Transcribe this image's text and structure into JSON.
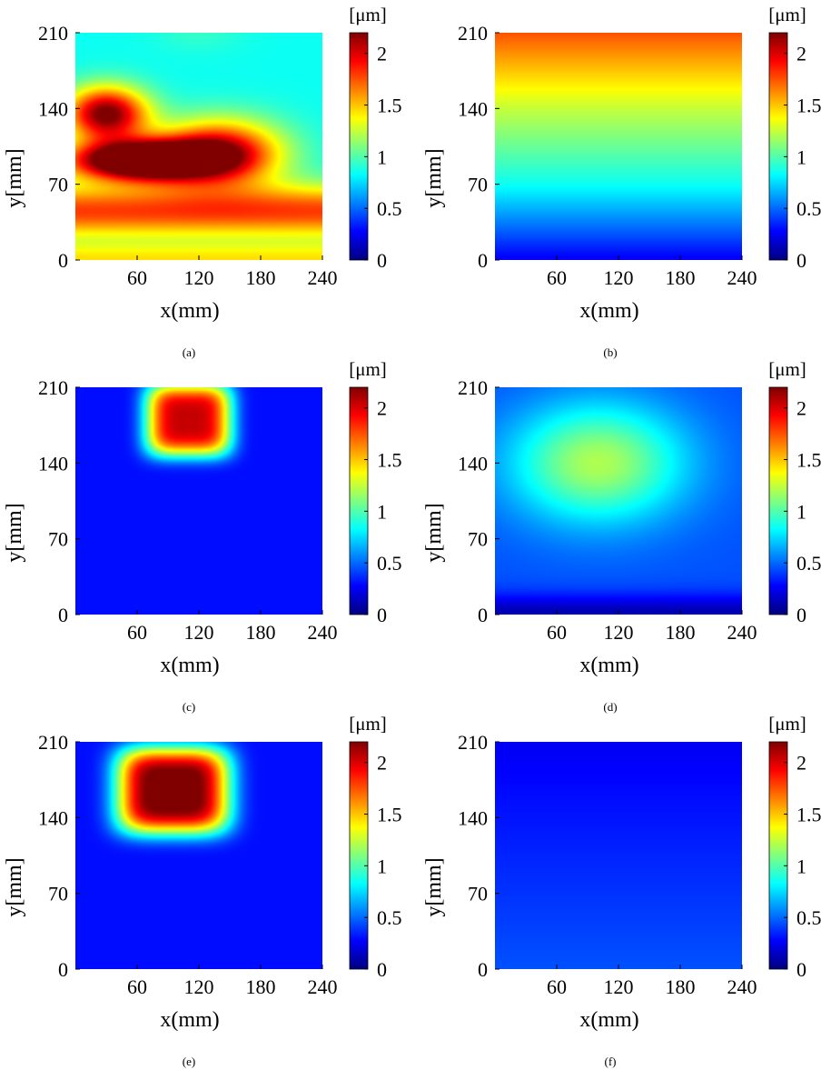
{
  "chart_data": [
    {
      "type": "heatmap",
      "caption": "(a)",
      "xlabel": "x(mm)",
      "ylabel": "y[mm]",
      "xlim": [
        0,
        240
      ],
      "ylim": [
        0,
        210
      ],
      "x_ticks": [
        "60",
        "120",
        "180",
        "240"
      ],
      "y_ticks": [
        "0",
        "70",
        "140",
        "210"
      ],
      "colorbar": {
        "unit": "[μm]",
        "range": [
          0,
          2.2
        ],
        "ticks": [
          "0",
          "0.5",
          "1",
          "1.5",
          "2"
        ]
      },
      "grid": false,
      "features": [
        {
          "shape": "blob",
          "x": 65,
          "y": 92,
          "sx": 70,
          "sy": 18,
          "value": 2.0
        },
        {
          "shape": "blob",
          "x": 140,
          "y": 100,
          "sx": 60,
          "sy": 30,
          "value": 1.2
        },
        {
          "shape": "blob",
          "x": 30,
          "y": 135,
          "sx": 40,
          "sy": 25,
          "value": 1.4
        },
        {
          "shape": "blob",
          "x": 120,
          "y": 215,
          "sx": 45,
          "sy": 22,
          "value": 0.1
        },
        {
          "shape": "band",
          "y": 0,
          "sy": 16,
          "value": 0.55
        },
        {
          "shape": "band",
          "y": 45,
          "sy": 25,
          "value": 0.95
        }
      ],
      "base": 0.85
    },
    {
      "type": "heatmap",
      "caption": "(b)",
      "xlabel": "x(mm)",
      "ylabel": "y[mm]",
      "xlim": [
        0,
        240
      ],
      "ylim": [
        0,
        210
      ],
      "x_ticks": [
        "60",
        "120",
        "180",
        "240"
      ],
      "y_ticks": [
        "0",
        "70",
        "140",
        "210"
      ],
      "colorbar": {
        "unit": "[μm]",
        "range": [
          0,
          2.2
        ],
        "ticks": [
          "0",
          "0.5",
          "1",
          "1.5",
          "2"
        ]
      },
      "grid": false,
      "gradient": {
        "y_values": [
          0,
          35,
          70,
          105,
          140,
          175,
          210
        ],
        "values": [
          0.25,
          0.55,
          0.85,
          1.05,
          1.25,
          1.5,
          1.75
        ]
      },
      "base": 0
    },
    {
      "type": "heatmap",
      "caption": "(c)",
      "xlabel": "x(mm)",
      "ylabel": "y[mm]",
      "xlim": [
        0,
        240
      ],
      "ylim": [
        0,
        210
      ],
      "x_ticks": [
        "60",
        "120",
        "180",
        "240"
      ],
      "y_ticks": [
        "0",
        "70",
        "140",
        "210"
      ],
      "colorbar": {
        "unit": "[μm]",
        "range": [
          0,
          2.2
        ],
        "ticks": [
          "0",
          "0.5",
          "1",
          "1.5",
          "2"
        ]
      },
      "grid": false,
      "features": [
        {
          "shape": "box",
          "x": 110,
          "y": 180,
          "sx": 42,
          "sy": 34,
          "value": 1.75
        }
      ],
      "base": 0.3
    },
    {
      "type": "heatmap",
      "caption": "(d)",
      "xlabel": "x(mm)",
      "ylabel": "y[mm]",
      "xlim": [
        0,
        240
      ],
      "ylim": [
        0,
        210
      ],
      "x_ticks": [
        "60",
        "120",
        "180",
        "240"
      ],
      "y_ticks": [
        "0",
        "70",
        "140",
        "210"
      ],
      "colorbar": {
        "unit": "[μm]",
        "range": [
          0,
          2.2
        ],
        "ticks": [
          "0",
          "0.5",
          "1",
          "1.5",
          "2"
        ]
      },
      "grid": false,
      "features": [
        {
          "shape": "blob",
          "x": 100,
          "y": 140,
          "sx": 85,
          "sy": 55,
          "value": 0.75
        },
        {
          "shape": "band",
          "y": 0,
          "sy": 18,
          "value": -0.35
        }
      ],
      "base": 0.45
    },
    {
      "type": "heatmap",
      "caption": "(e)",
      "xlabel": "x(mm)",
      "ylabel": "y[mm]",
      "xlim": [
        0,
        240
      ],
      "ylim": [
        0,
        210
      ],
      "x_ticks": [
        "60",
        "120",
        "180",
        "240"
      ],
      "y_ticks": [
        "0",
        "70",
        "140",
        "210"
      ],
      "colorbar": {
        "unit": "[μm]",
        "range": [
          0,
          2.2
        ],
        "ticks": [
          "0",
          "0.5",
          "1",
          "1.5",
          "2"
        ]
      },
      "grid": false,
      "features": [
        {
          "shape": "box",
          "x": 95,
          "y": 165,
          "sx": 55,
          "sy": 40,
          "value": 2.0
        }
      ],
      "base": 0.3
    },
    {
      "type": "heatmap",
      "caption": "(f)",
      "xlabel": "x(mm)",
      "ylabel": "y[mm]",
      "xlim": [
        0,
        240
      ],
      "ylim": [
        0,
        210
      ],
      "x_ticks": [
        "60",
        "120",
        "180",
        "240"
      ],
      "y_ticks": [
        "0",
        "70",
        "140",
        "210"
      ],
      "colorbar": {
        "unit": "[μm]",
        "range": [
          0,
          2.2
        ],
        "ticks": [
          "0",
          "0.5",
          "1",
          "1.5",
          "2"
        ]
      },
      "grid": false,
      "gradient": {
        "y_values": [
          0,
          105,
          210
        ],
        "values": [
          0.45,
          0.35,
          0.25
        ]
      },
      "base": 0
    }
  ]
}
